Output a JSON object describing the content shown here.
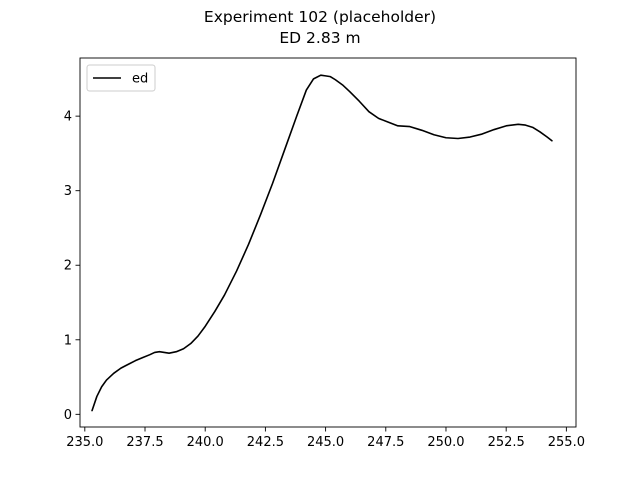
{
  "chart_data": {
    "type": "line",
    "title": "Experiment 102 (placeholder)",
    "subtitle": "ED 2.83 m",
    "xlabel": "",
    "ylabel": "",
    "xlim": [
      234.8,
      255.4
    ],
    "ylim": [
      -0.17,
      4.78
    ],
    "xticks": [
      235.0,
      237.5,
      240.0,
      242.5,
      245.0,
      247.5,
      250.0,
      252.5,
      255.0
    ],
    "xtick_labels": [
      "235.0",
      "237.5",
      "240.0",
      "242.5",
      "245.0",
      "247.5",
      "250.0",
      "252.5",
      "255.0"
    ],
    "yticks": [
      0,
      1,
      2,
      3,
      4
    ],
    "ytick_labels": [
      "0",
      "1",
      "2",
      "3",
      "4"
    ],
    "grid": false,
    "legend": {
      "position": "top-left",
      "entries": [
        "ed"
      ]
    },
    "series": [
      {
        "name": "ed",
        "color": "#000000",
        "x": [
          235.3,
          235.5,
          235.7,
          235.9,
          236.2,
          236.5,
          236.8,
          237.1,
          237.4,
          237.7,
          237.9,
          238.1,
          238.3,
          238.5,
          238.8,
          239.1,
          239.4,
          239.7,
          240.0,
          240.4,
          240.8,
          241.3,
          241.8,
          242.3,
          242.8,
          243.3,
          243.8,
          244.2,
          244.5,
          244.8,
          245.0,
          245.2,
          245.4,
          245.7,
          246.0,
          246.4,
          246.8,
          247.2,
          247.6,
          248.0,
          248.5,
          249.0,
          249.5,
          250.0,
          250.5,
          251.0,
          251.5,
          252.0,
          252.5,
          253.0,
          253.3,
          253.6,
          253.9,
          254.2,
          254.4
        ],
        "y": [
          0.05,
          0.24,
          0.37,
          0.46,
          0.55,
          0.62,
          0.67,
          0.72,
          0.76,
          0.8,
          0.83,
          0.84,
          0.83,
          0.82,
          0.84,
          0.88,
          0.95,
          1.05,
          1.18,
          1.38,
          1.6,
          1.92,
          2.28,
          2.68,
          3.1,
          3.55,
          4.0,
          4.35,
          4.5,
          4.55,
          4.54,
          4.53,
          4.49,
          4.42,
          4.33,
          4.2,
          4.06,
          3.97,
          3.92,
          3.87,
          3.86,
          3.81,
          3.75,
          3.71,
          3.7,
          3.72,
          3.76,
          3.82,
          3.87,
          3.89,
          3.88,
          3.85,
          3.79,
          3.72,
          3.67
        ]
      }
    ]
  }
}
